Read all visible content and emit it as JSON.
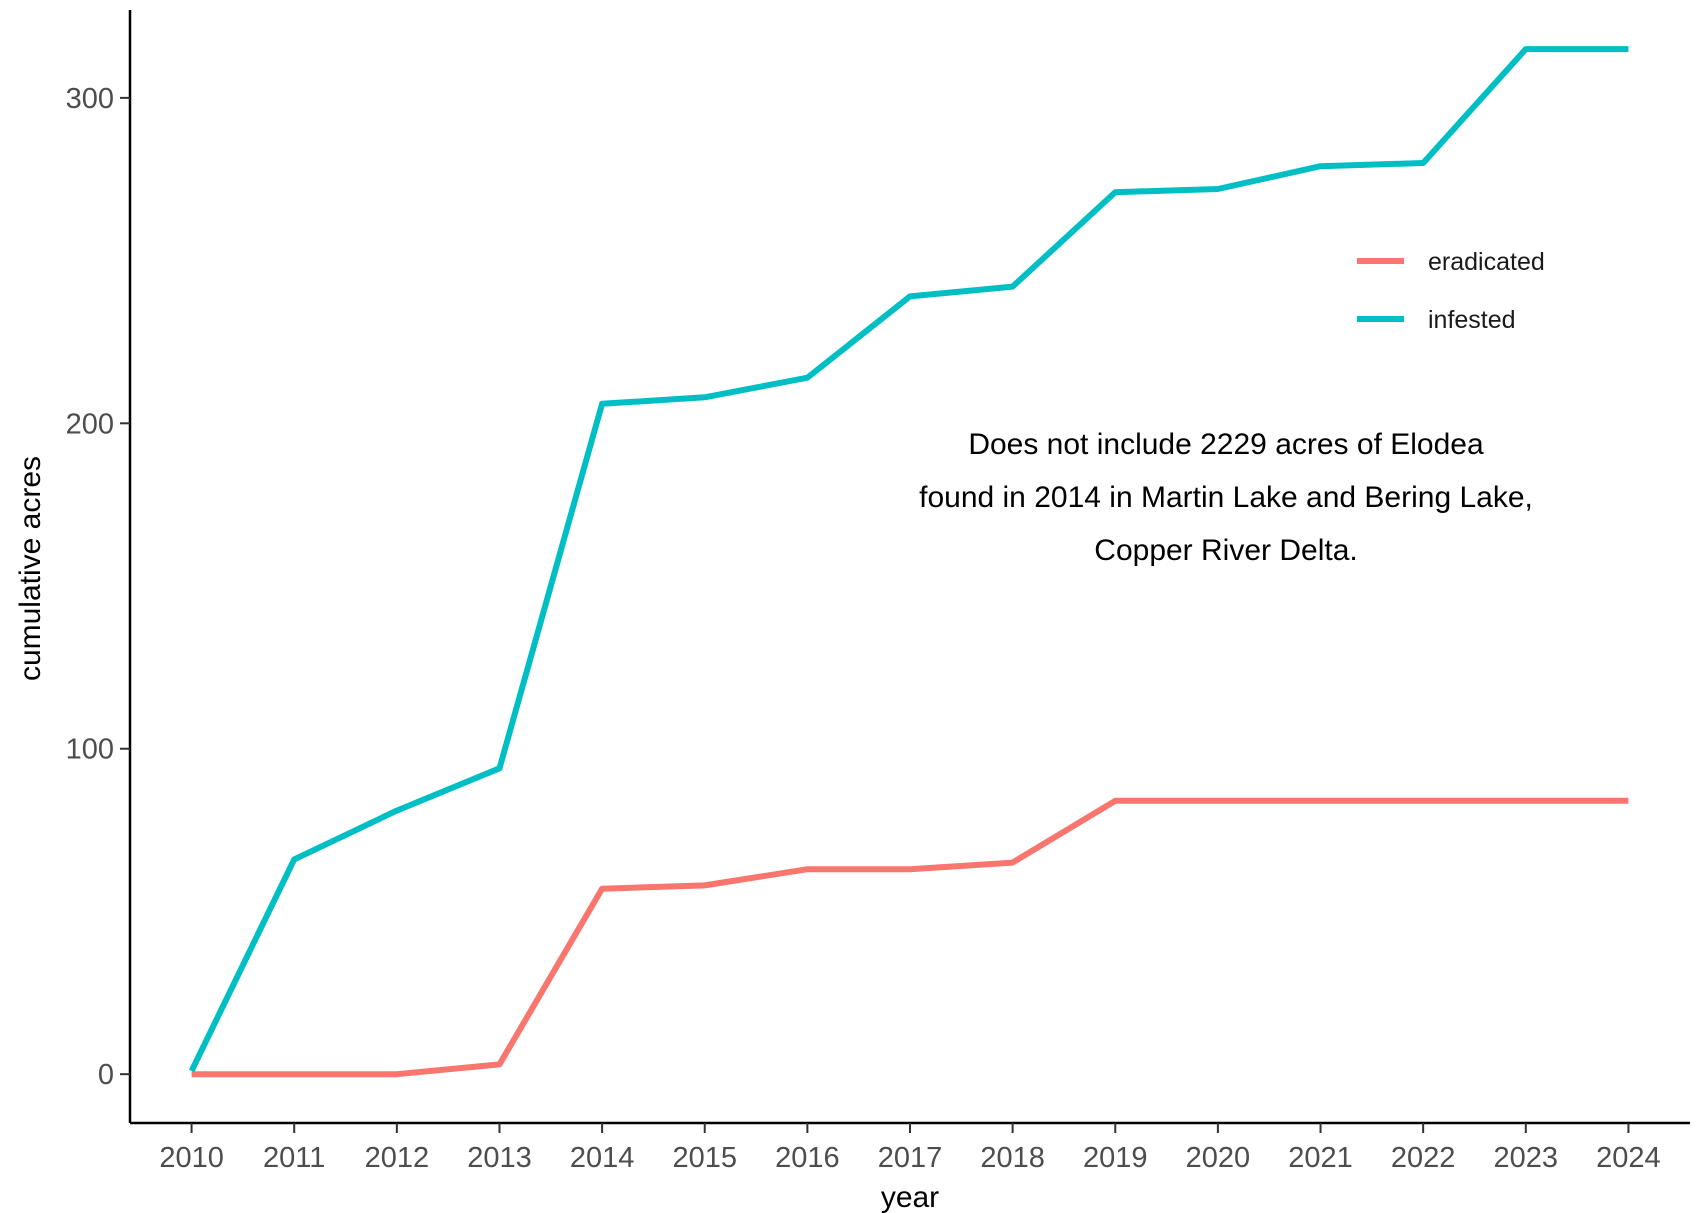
{
  "chart_data": {
    "type": "line",
    "title": "",
    "xlabel": "year",
    "ylabel": "cumulative acres",
    "x": [
      2010,
      2011,
      2012,
      2013,
      2014,
      2015,
      2016,
      2017,
      2018,
      2019,
      2020,
      2021,
      2022,
      2023,
      2024
    ],
    "x_tick_labels": [
      "2010",
      "2011",
      "2012",
      "2013",
      "2014",
      "2015",
      "2016",
      "2017",
      "2018",
      "2019",
      "2020",
      "2021",
      "2022",
      "2023",
      "2024"
    ],
    "xlim": [
      2009.4,
      2024.6
    ],
    "ylim": [
      -15,
      327
    ],
    "y_ticks": [
      0,
      100,
      200,
      300
    ],
    "y_tick_labels": [
      "0",
      "100",
      "200",
      "300"
    ],
    "series": [
      {
        "name": "eradicated",
        "color": "#F8766D",
        "values": [
          0,
          0,
          0,
          3,
          57,
          58,
          63,
          63,
          65,
          84,
          84,
          84,
          84,
          84,
          84
        ]
      },
      {
        "name": "infested",
        "color": "#00BFC4",
        "values": [
          1,
          66,
          81,
          94,
          206,
          208,
          214,
          239,
          242,
          271,
          272,
          279,
          280,
          315,
          315
        ]
      }
    ],
    "legend": {
      "position": "top-right-inside"
    },
    "annotation": {
      "lines": [
        "Does not include 2229 acres of Elodea",
        "found in 2014 in Martin Lake and Bering Lake,",
        "Copper River Delta."
      ]
    },
    "grid": false
  }
}
